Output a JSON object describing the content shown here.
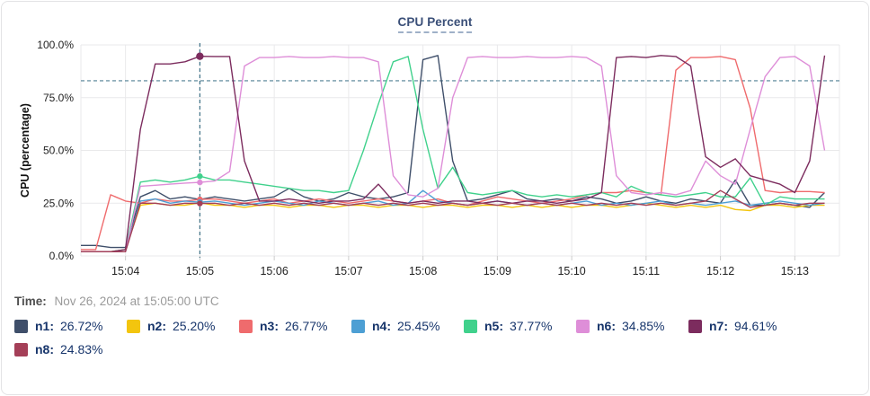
{
  "card": {
    "title": "CPU Percent"
  },
  "time": {
    "label": "Time:",
    "value": "Nov 26, 2024 at 15:05:00 UTC"
  },
  "legend": {
    "items": [
      {
        "name": "n1",
        "label": "n1:",
        "value": "26.72%",
        "color": "#3f4f6a"
      },
      {
        "name": "n2",
        "label": "n2:",
        "value": "25.20%",
        "color": "#f3c50e"
      },
      {
        "name": "n3",
        "label": "n3:",
        "value": "26.77%",
        "color": "#ef6b6d"
      },
      {
        "name": "n4",
        "label": "n4:",
        "value": "25.45%",
        "color": "#4d9fd4"
      },
      {
        "name": "n5",
        "label": "n5:",
        "value": "37.77%",
        "color": "#40d18c"
      },
      {
        "name": "n6",
        "label": "n6:",
        "value": "34.85%",
        "color": "#de8ed8"
      },
      {
        "name": "n7",
        "label": "n7:",
        "value": "94.61%",
        "color": "#7c2c5e"
      },
      {
        "name": "n8",
        "label": "n8:",
        "value": "24.83%",
        "color": "#a43f58"
      }
    ]
  },
  "colors": {
    "grid": "#e9e9eb",
    "axis_text": "#1f1f1f",
    "threshold": "#4f7f95",
    "crosshair": "#3e7186",
    "tick_mark": "#cccccc"
  },
  "chart_data": {
    "type": "line",
    "title": "CPU Percent",
    "xlabel": "",
    "ylabel": "CPU (percentage)",
    "ylim": [
      0,
      100
    ],
    "grid": true,
    "legend_position": "bottom",
    "y_ticks": [
      {
        "value": 0,
        "label": "0.0%"
      },
      {
        "value": 25,
        "label": "25.0%"
      },
      {
        "value": 50,
        "label": "50.0%"
      },
      {
        "value": 75,
        "label": "75.0%"
      },
      {
        "value": 100,
        "label": "100.0%"
      }
    ],
    "x_ticks": [
      {
        "minute": 4,
        "label": "15:04"
      },
      {
        "minute": 5,
        "label": "15:05"
      },
      {
        "minute": 6,
        "label": "15:06"
      },
      {
        "minute": 7,
        "label": "15:07"
      },
      {
        "minute": 8,
        "label": "15:08"
      },
      {
        "minute": 9,
        "label": "15:09"
      },
      {
        "minute": 10,
        "label": "15:10"
      },
      {
        "minute": 11,
        "label": "15:11"
      },
      {
        "minute": 12,
        "label": "15:12"
      },
      {
        "minute": 13,
        "label": "15:13"
      }
    ],
    "x_range_minutes": [
      3.4,
      13.6
    ],
    "threshold_line": {
      "y": 83,
      "style": "dashed"
    },
    "crosshair": {
      "x_minute": 5,
      "time_label": "15:05:00 UTC",
      "style": "dashed"
    },
    "x_minutes": [
      3.4,
      3.6,
      3.8,
      4,
      4.2,
      4.4,
      4.6,
      4.8,
      5,
      5.2,
      5.4,
      5.6,
      5.8,
      6,
      6.2,
      6.4,
      6.6,
      6.8,
      7,
      7.2,
      7.4,
      7.6,
      7.8,
      8,
      8.2,
      8.4,
      8.6,
      8.8,
      9,
      9.2,
      9.4,
      9.6,
      9.8,
      10,
      10.2,
      10.4,
      10.6,
      10.8,
      11,
      11.2,
      11.4,
      11.6,
      11.8,
      12,
      12.2,
      12.4,
      12.6,
      12.8,
      13,
      13.2,
      13.4
    ],
    "series": [
      {
        "name": "n1",
        "color": "#3f4f6a",
        "crosshair_value": 26.72,
        "values": [
          5,
          5,
          4,
          4,
          28,
          31,
          27,
          28,
          26.72,
          28,
          27,
          26,
          27,
          28,
          32,
          28,
          26,
          27,
          30,
          28,
          27,
          28,
          30,
          93,
          95,
          45,
          26,
          27,
          29,
          31,
          27,
          26,
          27,
          26,
          28,
          27,
          25,
          26,
          28,
          26,
          25,
          27,
          26,
          25,
          36,
          24,
          24,
          25,
          24,
          23,
          30
        ]
      },
      {
        "name": "n2",
        "color": "#f3c50e",
        "crosshair_value": 25.2,
        "values": [
          2,
          2,
          2,
          3,
          24,
          25,
          24,
          24,
          25.2,
          24,
          24,
          23,
          24,
          24,
          23,
          24,
          24,
          23,
          24,
          24,
          23,
          24,
          24,
          23,
          24,
          24,
          23,
          24,
          24,
          23,
          24,
          23,
          24,
          23,
          24,
          24,
          23,
          24,
          25,
          24,
          23,
          24,
          23,
          24,
          22,
          21.5,
          24,
          24,
          23,
          24,
          24
        ]
      },
      {
        "name": "n3",
        "color": "#ef6b6d",
        "crosshair_value": 26.77,
        "values": [
          3,
          3,
          29,
          26,
          25,
          27,
          26,
          26,
          26.77,
          27,
          26,
          25,
          26,
          27,
          25,
          26,
          27,
          26,
          25,
          26,
          27,
          26,
          25,
          26,
          27,
          25,
          24,
          26,
          28,
          27,
          26,
          25,
          26,
          27,
          29,
          30,
          30,
          31,
          30,
          29,
          88,
          94,
          94,
          94.5,
          93,
          70,
          31,
          30,
          30.5,
          30.5,
          30
        ]
      },
      {
        "name": "n4",
        "color": "#4d9fd4",
        "crosshair_value": 25.45,
        "values": [
          2,
          2,
          2,
          2,
          26,
          27,
          25,
          26,
          25.45,
          26,
          25,
          24,
          25,
          26,
          25,
          24,
          26,
          25,
          24,
          25,
          26,
          24,
          25,
          31,
          26,
          25,
          24,
          25,
          26,
          25,
          24,
          25,
          24,
          25,
          26,
          24,
          25,
          24,
          25,
          26,
          24,
          25,
          24,
          25,
          26,
          24,
          25,
          26,
          25,
          24,
          25
        ]
      },
      {
        "name": "n5",
        "color": "#40d18c",
        "crosshair_value": 37.77,
        "values": [
          2,
          2,
          2,
          3,
          35,
          36,
          35,
          36,
          37.77,
          36,
          36,
          35,
          34,
          33,
          32,
          31,
          31,
          30,
          31,
          50,
          72,
          92,
          94.5,
          60,
          32,
          42,
          30,
          29,
          30,
          31,
          29,
          28,
          29,
          28,
          29,
          30,
          28,
          33,
          30,
          29,
          28,
          29,
          30,
          28,
          28,
          37,
          24,
          28,
          27,
          27,
          27
        ]
      },
      {
        "name": "n6",
        "color": "#de8ed8",
        "crosshair_value": 34.85,
        "values": [
          2,
          2,
          2,
          2,
          33,
          33.5,
          34,
          34.5,
          34.85,
          35.5,
          40,
          90,
          94,
          94,
          94.5,
          94,
          94,
          94.5,
          94,
          94,
          92,
          38,
          29,
          28,
          32,
          75,
          94,
          94.5,
          94,
          94,
          94.5,
          94,
          94,
          94.5,
          94,
          90,
          38,
          30,
          29,
          30,
          29,
          31,
          45,
          38,
          34,
          60,
          85,
          94,
          94.5,
          90,
          50
        ]
      },
      {
        "name": "n7",
        "color": "#7c2c5e",
        "crosshair_value": 94.61,
        "values": [
          2,
          2,
          2,
          3,
          60,
          91,
          91,
          92,
          94.61,
          94.5,
          94.5,
          45,
          26,
          26,
          27,
          26,
          25,
          26,
          26,
          27,
          34,
          26,
          25,
          26,
          25,
          26,
          26,
          25,
          26,
          25,
          26,
          26,
          25,
          26,
          27,
          30,
          94,
          94.5,
          94,
          95,
          94.5,
          90,
          47,
          42,
          46,
          38,
          36,
          34,
          30,
          45,
          95
        ]
      },
      {
        "name": "n8",
        "color": "#a43f58",
        "crosshair_value": 24.83,
        "values": [
          2,
          2,
          2,
          2,
          25,
          25,
          24,
          25,
          24.83,
          25,
          24,
          25,
          24,
          25,
          24,
          25,
          24,
          25,
          24,
          25,
          24,
          25,
          24,
          25,
          24,
          25,
          24,
          25,
          24,
          25,
          24,
          25,
          24,
          25,
          24,
          25,
          24,
          25,
          24,
          25,
          24,
          25,
          26,
          31,
          27,
          23,
          24,
          25,
          24,
          25,
          25
        ]
      }
    ]
  }
}
